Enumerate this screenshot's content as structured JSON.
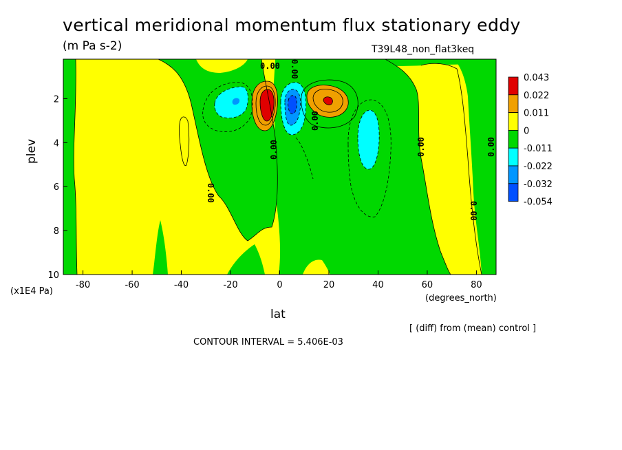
{
  "header": {
    "title": "vertical meridional momentum flux stationary eddy",
    "units": "(m Pa s-2)",
    "run_name": "T39L48_non_flat3keq"
  },
  "footer": {
    "diff_note": "[ (diff) from (mean) control ]",
    "contour_interval": "CONTOUR INTERVAL = 5.406E-03"
  },
  "chart_data": {
    "type": "contour",
    "xlabel": "lat",
    "xunit": "(degrees_north)",
    "ylabel": "plev",
    "yunit": "(x1E4 Pa)",
    "xlim": [
      -88,
      88
    ],
    "ylim": [
      10,
      0.2
    ],
    "x_ticks": [
      -80,
      -60,
      -40,
      -20,
      0,
      20,
      40,
      60,
      80
    ],
    "x_tick_labels": [
      "-80",
      "-60",
      "-40",
      "-20",
      "0",
      "20",
      "40",
      "60",
      "80"
    ],
    "y_ticks": [
      2,
      4,
      6,
      8,
      10
    ],
    "y_tick_labels": [
      "2",
      "4",
      "6",
      "8",
      "10"
    ],
    "contour_interval": 0.005406,
    "colorbar": {
      "levels": [
        "0.043",
        "0.022",
        "0.011",
        "0",
        "-0.011",
        "-0.022",
        "-0.032",
        "-0.054"
      ],
      "colors": [
        "#e00000",
        "#f0a000",
        "#ffff00",
        "#00d800",
        "#00ffff",
        "#0096ff",
        "#0050ff"
      ]
    },
    "contour_labels": [
      "0.00",
      "0.00",
      "0.00",
      "0.00",
      "0.00",
      "0.00",
      "0.00",
      "0.00"
    ],
    "features": [
      {
        "name": "positive maximum",
        "lat": -5,
        "plev": 2.2,
        "value": 0.043
      },
      {
        "name": "negative minimum",
        "lat": 5,
        "plev": 2.2,
        "value": -0.054
      },
      {
        "name": "positive lobe",
        "lat": 20,
        "plev": 2.1,
        "value": 0.043
      },
      {
        "name": "negative lobe",
        "lat": -22,
        "plev": 2.2,
        "value": -0.022
      },
      {
        "name": "negative lobe",
        "lat": 36,
        "plev": 3.7,
        "value": -0.022
      }
    ]
  }
}
